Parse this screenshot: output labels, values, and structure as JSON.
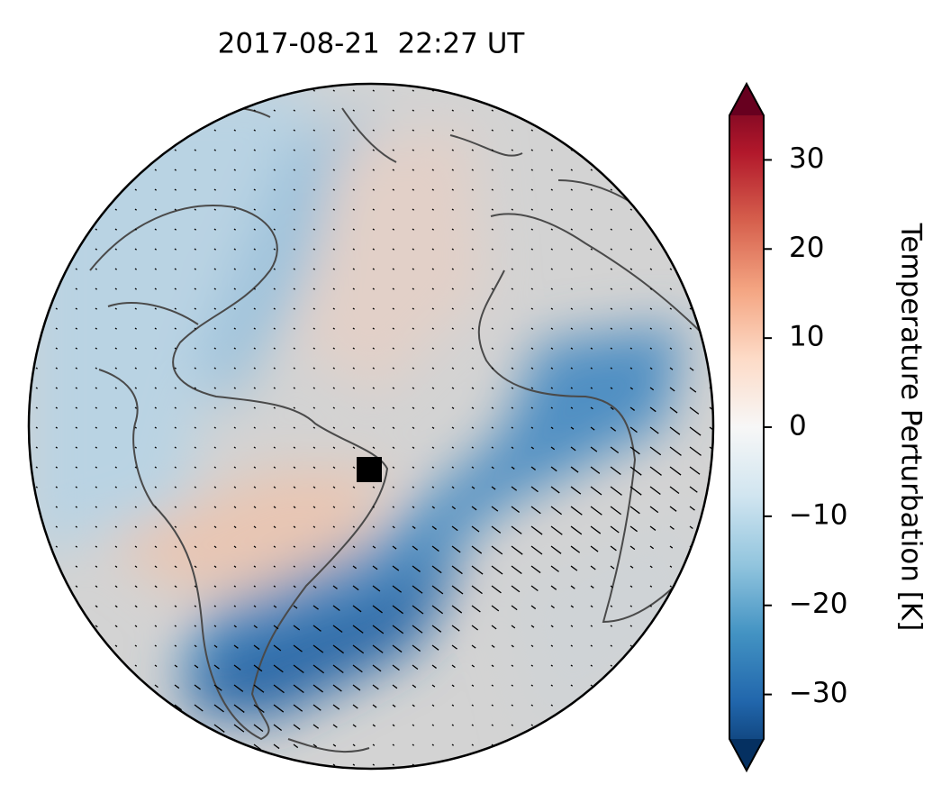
{
  "map": {
    "title": "2017-08-21  22:27 UT",
    "colorbar": {
      "label": "Temperature Perturbation [K]",
      "clim": [
        -35,
        35
      ],
      "extend": "both",
      "ticks": [
        {
          "value": -30,
          "label": "−30"
        },
        {
          "value": -20,
          "label": "−20"
        },
        {
          "value": -10,
          "label": "−10"
        },
        0,
        10,
        20,
        30
      ]
    }
  }
}
